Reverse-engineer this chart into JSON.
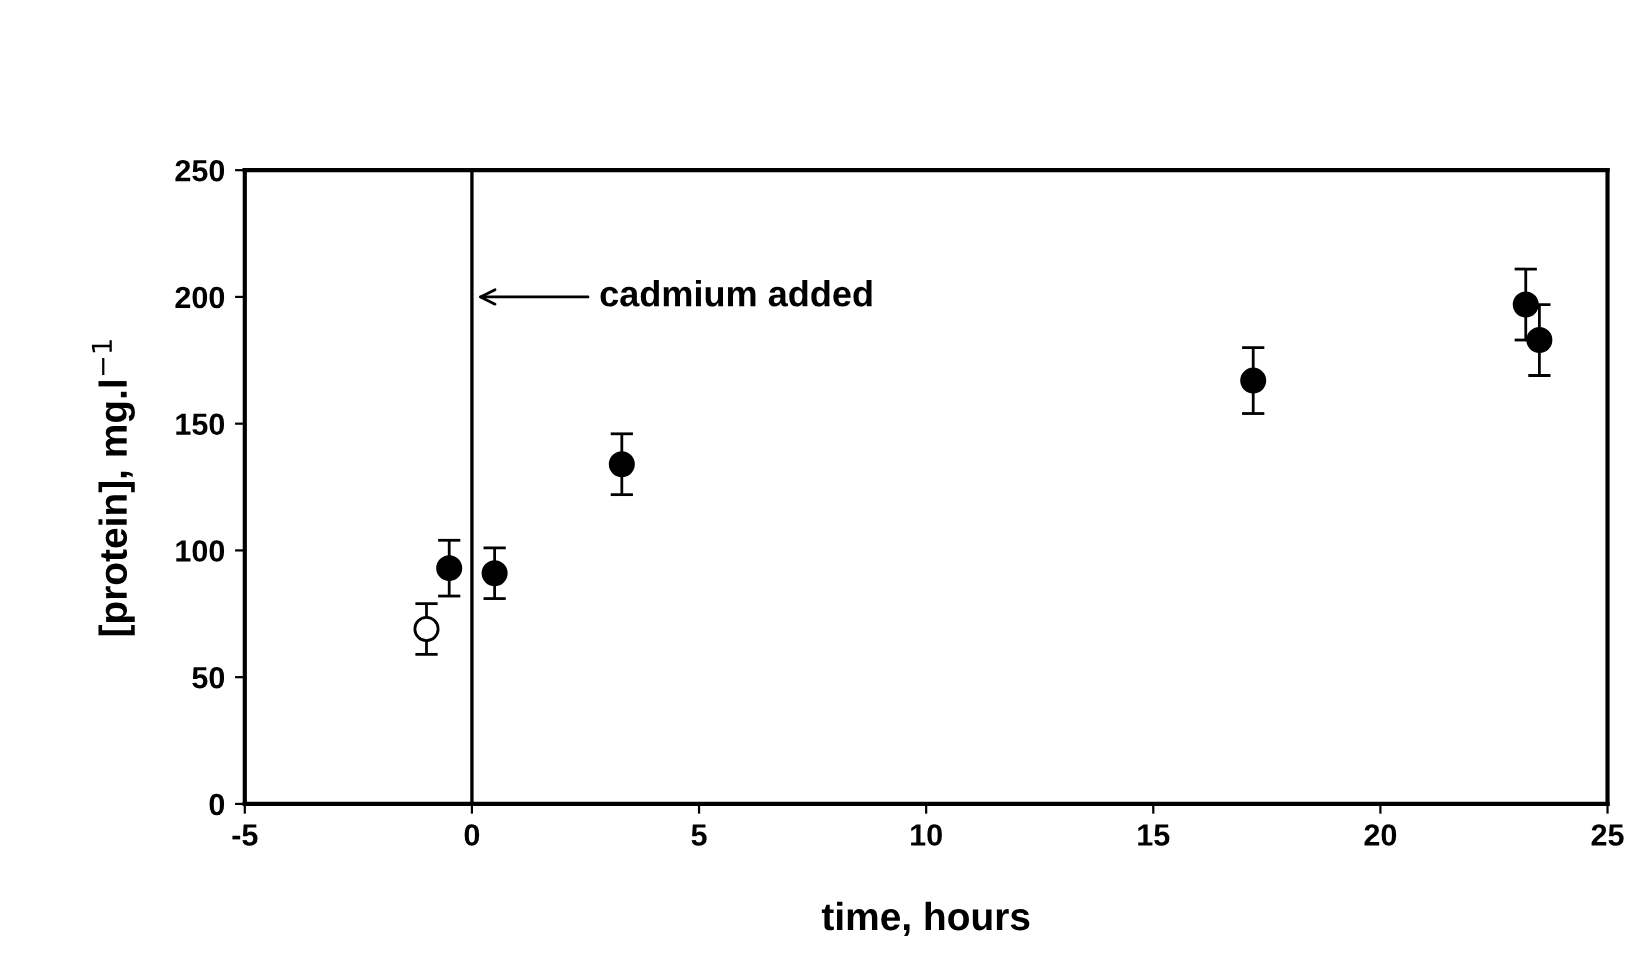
{
  "chart_data": {
    "type": "scatter",
    "xlabel": "time, hours",
    "ylabel": "[protein], mg.l$^{−1}$",
    "xlim": [
      -5,
      25
    ],
    "ylim": [
      0,
      250
    ],
    "xticks": [
      -5,
      0,
      5,
      10,
      15,
      20,
      25
    ],
    "yticks": [
      0,
      50,
      100,
      150,
      200,
      250
    ],
    "grid": false,
    "marker": "circle",
    "series": [
      {
        "color": "#ffffff",
        "x": [
          -1
        ],
        "values": [
          69
        ],
        "errors": [
          10
        ]
      },
      {
        "color": "#000000",
        "x": [
          -0.5,
          0.5,
          3.3,
          17.2,
          23.2,
          23.5
        ],
        "values": [
          93,
          91,
          134,
          167,
          197,
          183
        ],
        "errors": [
          11,
          10,
          12,
          13,
          14,
          14
        ]
      }
    ],
    "ref_lines": [
      {
        "axis": "x",
        "value": 0,
        "label": "cadmium added",
        "color": "#000000",
        "line_style": "solid"
      }
    ]
  }
}
